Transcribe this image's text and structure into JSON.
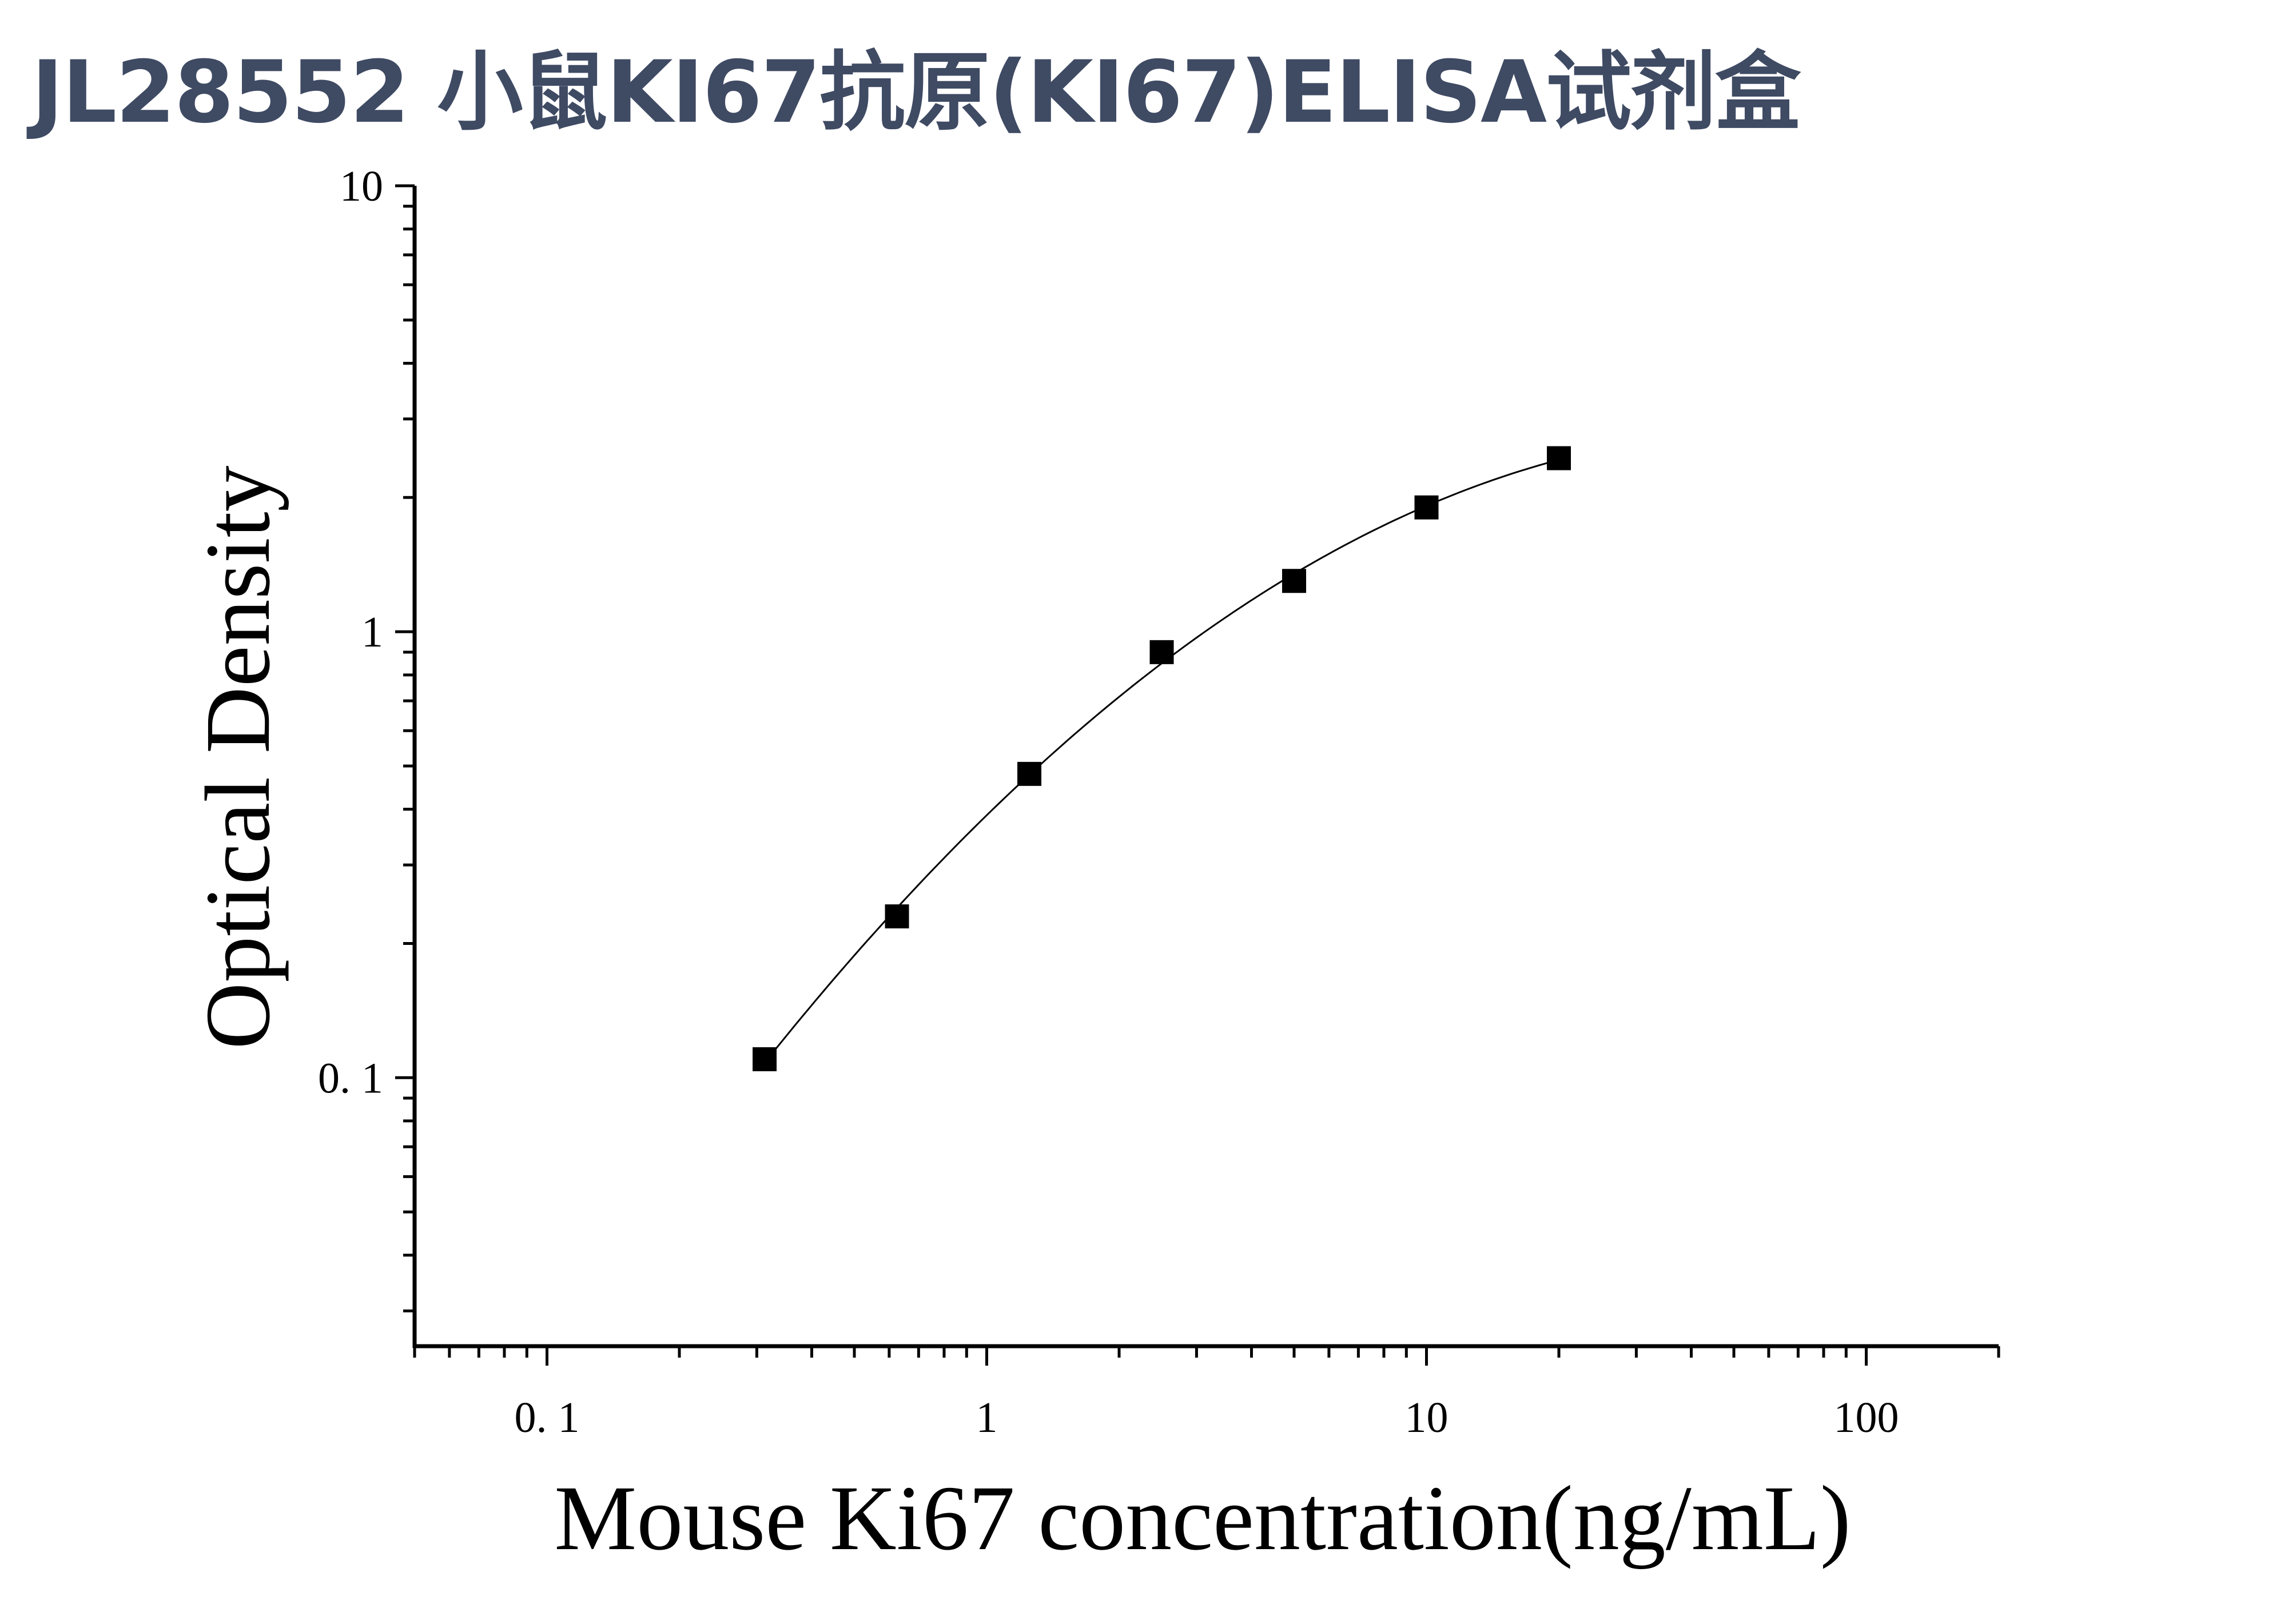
{
  "title": "JL28552 小鼠KI67抗原(KI67)ELISA试剂盒",
  "chart_data": {
    "type": "scatter",
    "xlabel": "Mouse Ki67 concentration(ng/mL)",
    "ylabel": "Optical Density",
    "xscale": "log",
    "yscale": "log",
    "xlim": [
      0.05,
      200
    ],
    "ylim": [
      0.025,
      10
    ],
    "x_ticks": [
      {
        "value": 0.1,
        "label": "0. 1"
      },
      {
        "value": 1,
        "label": "1"
      },
      {
        "value": 10,
        "label": "10"
      },
      {
        "value": 100,
        "label": "100"
      }
    ],
    "y_ticks": [
      {
        "value": 0.1,
        "label": "0. 1"
      },
      {
        "value": 1,
        "label": "1"
      },
      {
        "value": 10,
        "label": "10"
      }
    ],
    "series": [
      {
        "x": [
          0.3125,
          0.625,
          1.25,
          2.5,
          5,
          10,
          20
        ],
        "y": [
          0.11,
          0.23,
          0.48,
          0.9,
          1.3,
          1.9,
          2.45
        ],
        "marker": "square",
        "color": "#000000",
        "fit_curve": true
      }
    ],
    "grid": false,
    "legend": "none"
  }
}
